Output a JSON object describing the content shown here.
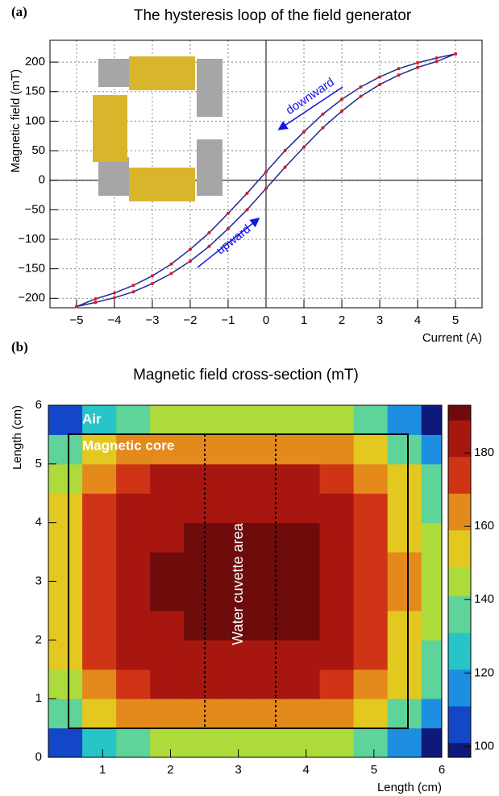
{
  "chart_data": [
    {
      "type": "line",
      "panel_label": "(a)",
      "title": "The hysteresis loop of the field generator",
      "x_label": "Current (A)",
      "y_label": "Magnetic field (mT)",
      "x": [
        -5,
        -4.5,
        -4,
        -3.5,
        -3,
        -2.5,
        -2,
        -1.5,
        -1,
        -0.5,
        0,
        0.5,
        1,
        1.5,
        2,
        2.5,
        3,
        3.5,
        4,
        4.5,
        5
      ],
      "series": [
        {
          "name": "downward",
          "color": "#1f2b8f",
          "marker_color": "#e0191f",
          "values": [
            -214,
            -201,
            -191,
            -178,
            -162,
            -142,
            -117,
            -89,
            -56,
            -22,
            14,
            50,
            82,
            112,
            137,
            158,
            175,
            189,
            199,
            207,
            214
          ]
        },
        {
          "name": "upward",
          "color": "#1f2b8f",
          "marker_color": "#e0191f",
          "values": [
            -214,
            -207,
            -199,
            -189,
            -175,
            -158,
            -137,
            -112,
            -82,
            -50,
            -14,
            22,
            56,
            89,
            117,
            142,
            162,
            178,
            191,
            201,
            214
          ]
        }
      ],
      "xlim": [
        -5.7,
        5.7
      ],
      "ylim": [
        -216,
        237
      ],
      "xticks": [
        {
          "value": -5,
          "label": "−5"
        },
        {
          "value": -4,
          "label": "−4"
        },
        {
          "value": -3,
          "label": "−3"
        },
        {
          "value": -2,
          "label": "−2"
        },
        {
          "value": -1,
          "label": "−1"
        },
        0,
        1,
        2,
        3,
        4,
        5
      ],
      "yticks": [
        {
          "value": -200,
          "label": "−200"
        },
        {
          "value": -150,
          "label": "−150"
        },
        {
          "value": -100,
          "label": "−100"
        },
        {
          "value": -50,
          "label": "−50"
        },
        0,
        50,
        100,
        150,
        200
      ],
      "grid": true
    },
    {
      "type": "heatmap",
      "panel_label": "(b)",
      "title": "Magnetic field cross-section (mT)",
      "x_label": "Length (cm)",
      "y_label": "Length (cm)",
      "annotations": [
        "Air",
        "Magnetic core",
        "Water cuvette area"
      ],
      "xbins": [
        0.2,
        0.7,
        1.2,
        1.7,
        2.2,
        2.7,
        3.2,
        3.7,
        4.2,
        4.7,
        5.2,
        5.7,
        6.0
      ],
      "ybins": [
        0,
        0.5,
        1,
        1.5,
        2,
        2.5,
        3,
        3.5,
        4,
        4.5,
        5,
        5.5,
        6
      ],
      "z": [
        [
          111,
          130,
          140,
          144,
          147,
          147,
          147,
          145,
          141,
          133,
          115,
          97
        ],
        [
          132,
          151,
          161,
          165,
          168,
          168,
          168,
          166,
          162,
          154,
          136,
          118
        ],
        [
          146,
          165,
          175,
          179,
          182,
          182,
          182,
          180,
          176,
          168,
          150,
          132
        ],
        [
          152,
          171,
          181,
          185,
          188,
          188,
          188,
          186,
          182,
          174,
          156,
          138
        ],
        [
          155,
          174,
          184,
          188,
          191,
          191,
          191,
          189,
          185,
          177,
          159,
          141
        ],
        [
          156,
          175,
          185,
          189,
          192,
          192,
          192,
          190,
          186,
          178,
          160,
          142
        ],
        [
          156,
          175,
          185,
          189,
          192,
          192,
          192,
          190,
          186,
          178,
          160,
          142
        ],
        [
          155,
          174,
          184,
          188,
          191,
          191,
          191,
          189,
          185,
          177,
          159,
          141
        ],
        [
          152,
          171,
          181,
          185,
          188,
          188,
          188,
          186,
          182,
          174,
          156,
          138
        ],
        [
          146,
          165,
          175,
          179,
          182,
          182,
          182,
          180,
          176,
          168,
          150,
          132
        ],
        [
          132,
          151,
          161,
          165,
          168,
          168,
          168,
          166,
          162,
          154,
          136,
          118
        ],
        [
          111,
          130,
          140,
          144,
          147,
          147,
          147,
          145,
          141,
          133,
          115,
          97
        ]
      ],
      "xlim": [
        0.2,
        6
      ],
      "ylim": [
        0,
        6
      ],
      "zlim": [
        97,
        193
      ],
      "xticks": [
        1,
        2,
        3,
        4,
        5,
        6
      ],
      "yticks": [
        0,
        1,
        2,
        3,
        4,
        5,
        6
      ],
      "zticks": [
        100,
        120,
        140,
        160,
        180
      ],
      "colormap": [
        "#0d1a7a",
        "#1446c8",
        "#1d8ee0",
        "#27c4c8",
        "#5ed39a",
        "#aedb3c",
        "#e3c81f",
        "#e48a1c",
        "#cf3416",
        "#a8170f",
        "#6e0b0b"
      ]
    }
  ]
}
